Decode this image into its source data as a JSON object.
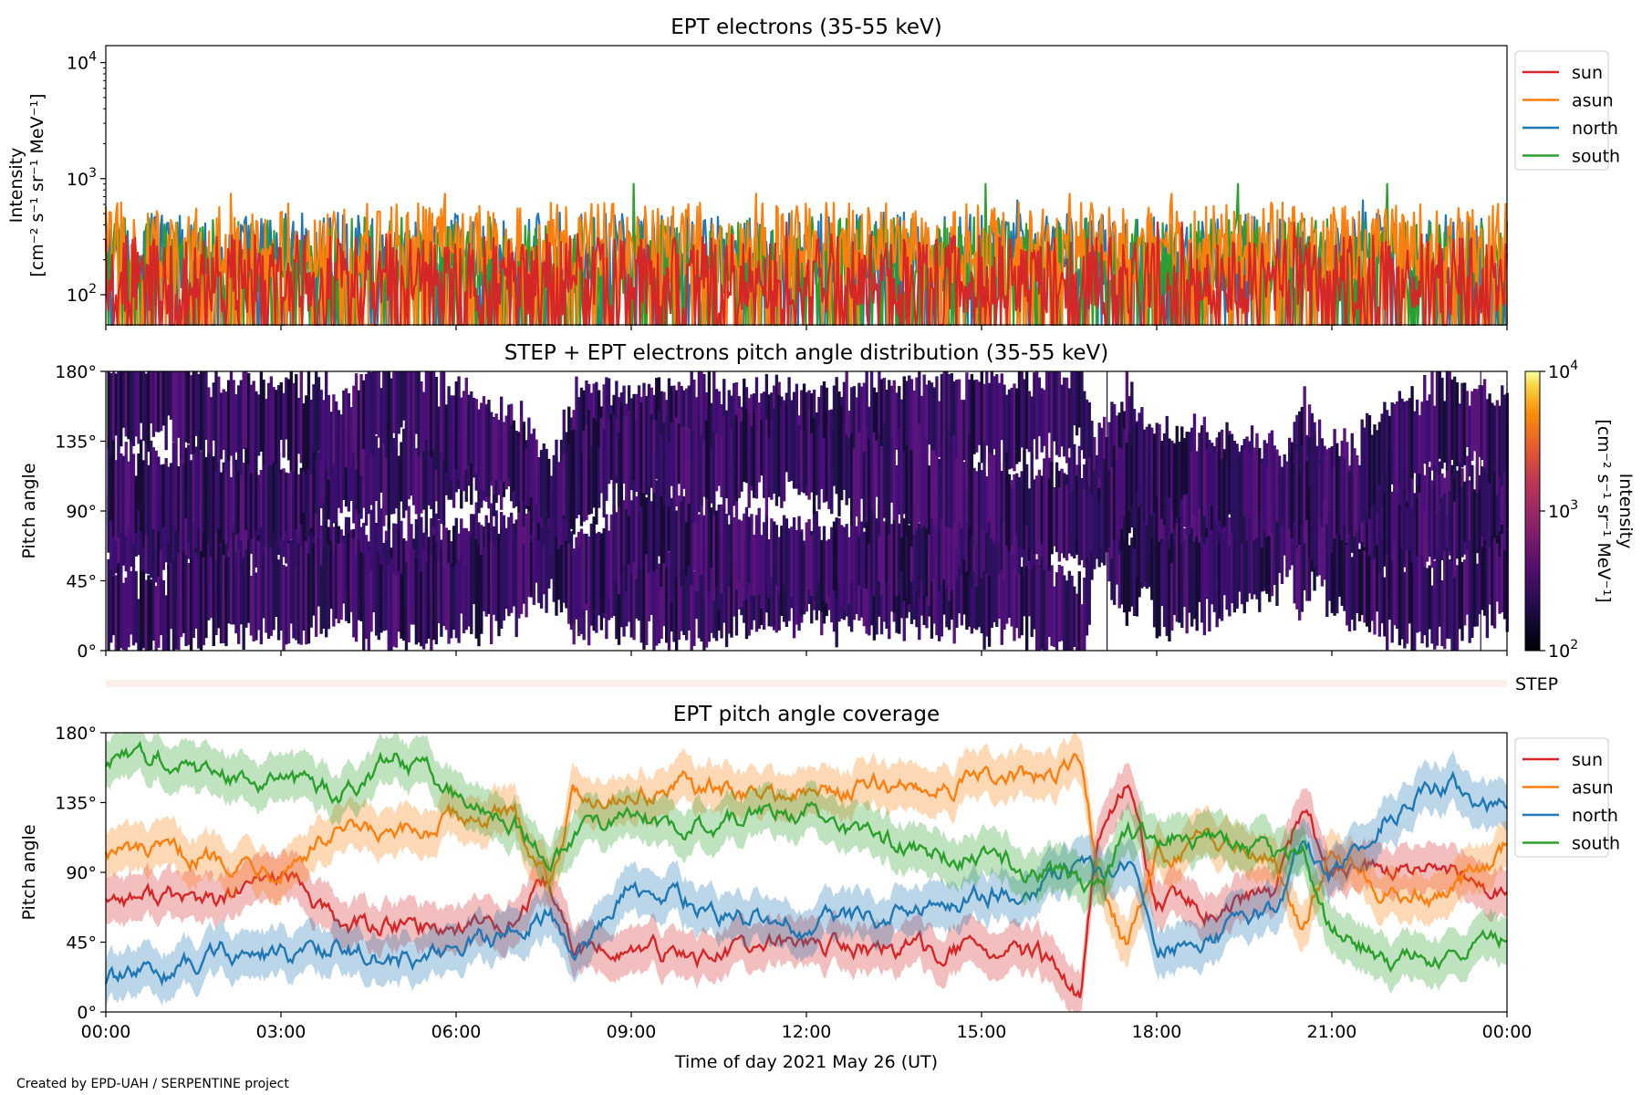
{
  "credit": "Created by EPD-UAH / SERPENTINE project",
  "xlabel": "Time of day 2021 May 26 (UT)",
  "x_ticks": [
    "00:00",
    "03:00",
    "06:00",
    "09:00",
    "12:00",
    "15:00",
    "18:00",
    "21:00",
    "00:00"
  ],
  "colors": {
    "sun": "#d62728",
    "asun": "#ff7f0e",
    "north": "#1f77b4",
    "south": "#2ca02c"
  },
  "chart_data": [
    {
      "type": "line",
      "title": "EPT electrons (35-55 keV)",
      "ylabel_line1": "Intensity",
      "ylabel_line2": "[cm⁻² s⁻¹ sr⁻¹ MeV⁻¹]",
      "yscale": "log",
      "ylim": [
        55,
        14000
      ],
      "y_ticks": [
        {
          "base": "10",
          "exp": "2",
          "value": 100
        },
        {
          "base": "10",
          "exp": "3",
          "value": 1000
        },
        {
          "base": "10",
          "exp": "4",
          "value": 10000
        }
      ],
      "xlim_hours": [
        0,
        24
      ],
      "legend_position": "right",
      "series": [
        {
          "name": "sun",
          "typical_level": 150,
          "peak": 420
        },
        {
          "name": "asun",
          "typical_level": 280,
          "peak": 740
        },
        {
          "name": "north",
          "typical_level": 230,
          "peak": 650
        },
        {
          "name": "south",
          "typical_level": 210,
          "peak": 900
        }
      ]
    },
    {
      "type": "heatmap",
      "title": "STEP + EPT electrons pitch angle distribution (35-55 keV)",
      "ylabel": "Pitch angle",
      "ylim": [
        0,
        180
      ],
      "y_ticks": [
        "0°",
        "45°",
        "90°",
        "135°",
        "180°"
      ],
      "xlim_hours": [
        0,
        24
      ],
      "colorbar": {
        "label": "Intensity",
        "unit": "[cm⁻² s⁻¹ sr⁻¹ MeV⁻¹]",
        "scale": "log",
        "range": [
          100,
          10000
        ],
        "ticks": [
          {
            "base": "10",
            "exp": "2"
          },
          {
            "base": "10",
            "exp": "3"
          },
          {
            "base": "10",
            "exp": "4"
          }
        ]
      },
      "step_label": "STEP"
    },
    {
      "type": "line",
      "title": "EPT pitch angle coverage",
      "ylabel": "Pitch angle",
      "ylim": [
        0,
        180
      ],
      "y_ticks": [
        "0°",
        "45°",
        "90°",
        "135°",
        "180°"
      ],
      "xlim_hours": [
        0,
        24
      ],
      "legend_position": "right",
      "series": [
        {
          "name": "sun",
          "x": [
            0,
            1,
            2,
            3,
            4,
            5,
            6,
            7,
            7.6,
            8,
            9,
            10,
            11,
            12,
            13,
            14,
            15,
            16,
            16.7,
            17,
            17.5,
            18,
            19,
            20,
            20.5,
            21,
            22,
            23,
            24
          ],
          "y": [
            75,
            75,
            70,
            90,
            55,
            55,
            55,
            60,
            80,
            40,
            40,
            35,
            40,
            45,
            40,
            40,
            40,
            35,
            10,
            115,
            145,
            70,
            65,
            75,
            130,
            90,
            90,
            90,
            75
          ]
        },
        {
          "name": "asun",
          "x": [
            0,
            1,
            2,
            3,
            4,
            5,
            6,
            7,
            7.6,
            8,
            9,
            10,
            11,
            12,
            13,
            14,
            15,
            16,
            16.7,
            17,
            17.5,
            18,
            19,
            20,
            20.5,
            21,
            22,
            23,
            24
          ],
          "y": [
            105,
            100,
            100,
            95,
            115,
            110,
            125,
            125,
            85,
            140,
            140,
            145,
            140,
            140,
            145,
            145,
            150,
            150,
            160,
            90,
            40,
            100,
            110,
            105,
            50,
            110,
            75,
            75,
            105
          ]
        },
        {
          "name": "north",
          "x": [
            0,
            1,
            2,
            3,
            4,
            5,
            6,
            7,
            7.6,
            8,
            9,
            10,
            11,
            12,
            13,
            14,
            15,
            16,
            16.7,
            17,
            17.5,
            18,
            19,
            20,
            20.5,
            21,
            22,
            23,
            24
          ],
          "y": [
            20,
            25,
            40,
            35,
            45,
            30,
            40,
            50,
            65,
            40,
            80,
            70,
            60,
            55,
            60,
            65,
            75,
            85,
            95,
            85,
            100,
            40,
            50,
            65,
            110,
            90,
            130,
            150,
            130
          ]
        },
        {
          "name": "south",
          "x": [
            0,
            1,
            2,
            3,
            4,
            5,
            6,
            7,
            7.6,
            8,
            9,
            10,
            11,
            12,
            13,
            14,
            15,
            16,
            16.7,
            17,
            17.5,
            18,
            19,
            20,
            20.5,
            21,
            22,
            23,
            24
          ],
          "y": [
            160,
            165,
            150,
            150,
            140,
            165,
            140,
            125,
            95,
            110,
            130,
            115,
            125,
            130,
            110,
            105,
            100,
            90,
            85,
            80,
            120,
            115,
            110,
            100,
            100,
            50,
            35,
            30,
            50
          ]
        }
      ]
    }
  ]
}
